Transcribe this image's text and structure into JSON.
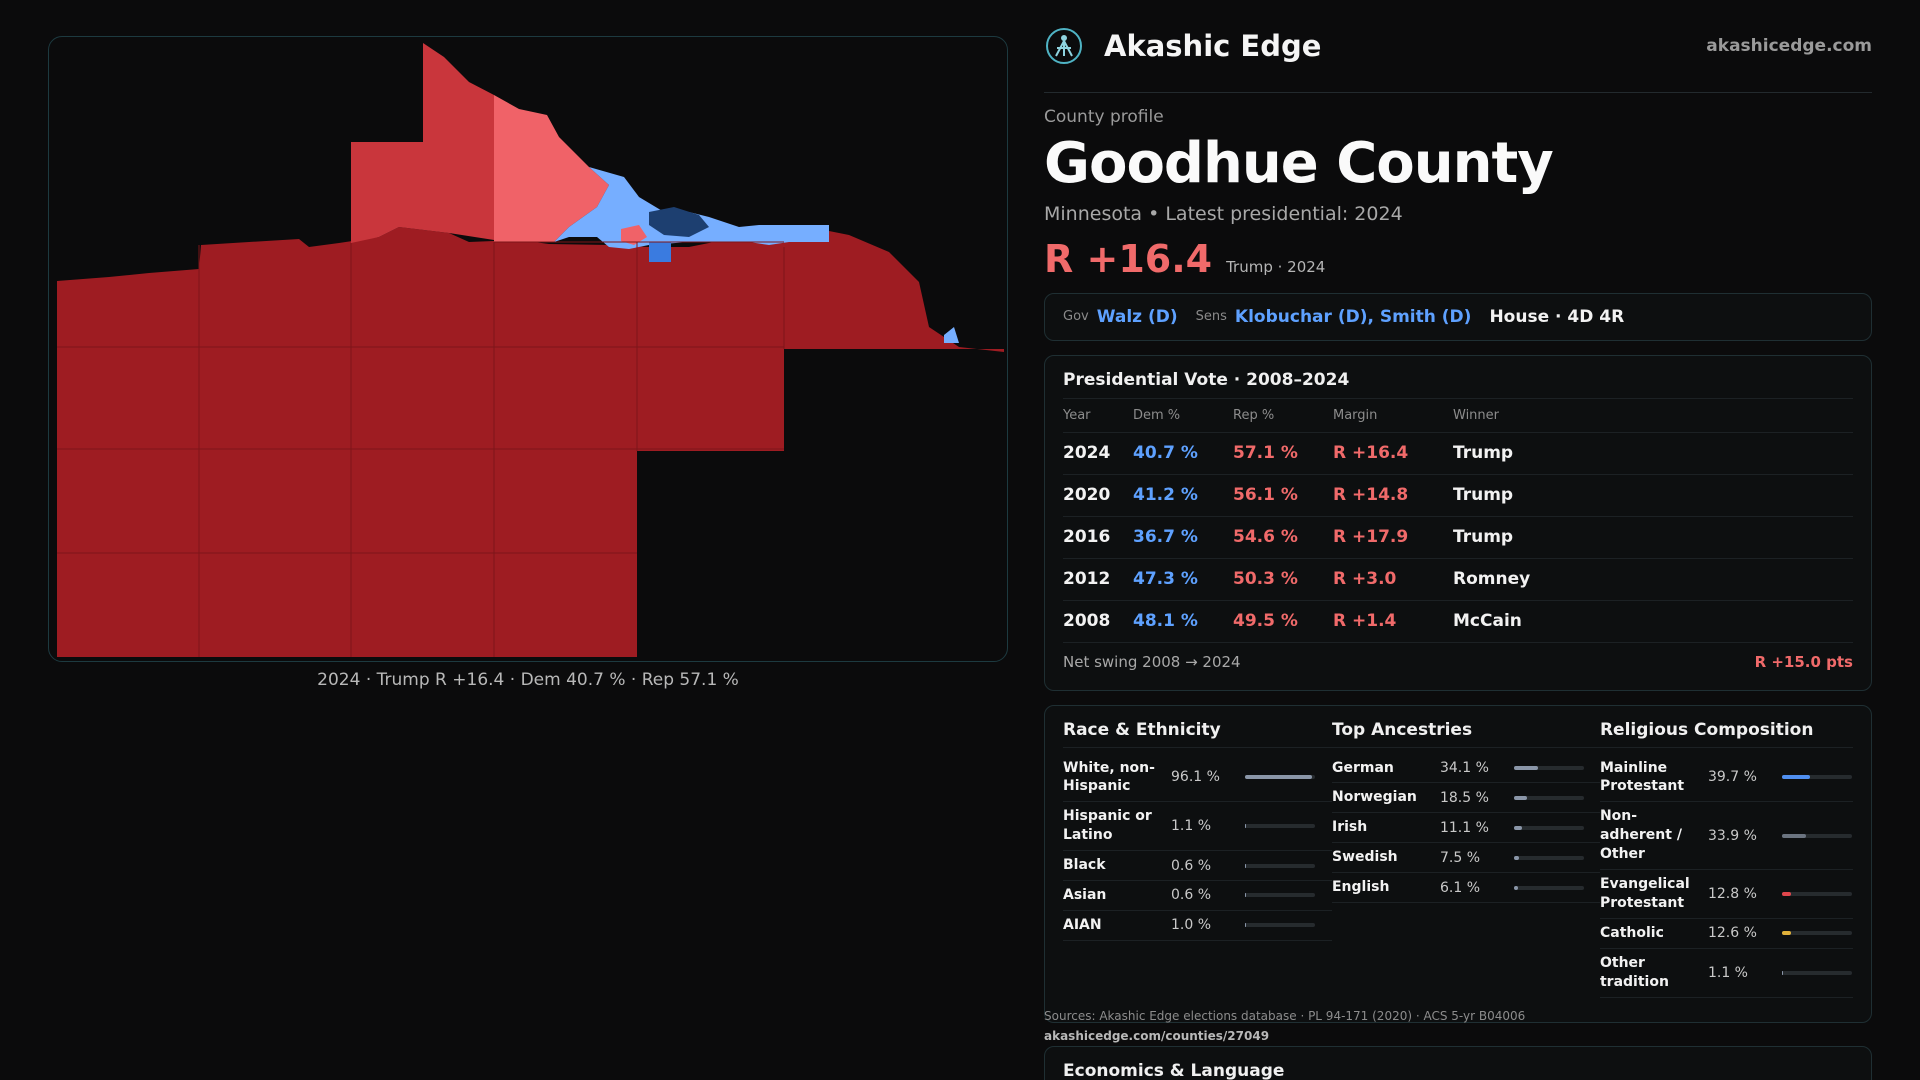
{
  "brand": {
    "name": "Akashic Edge",
    "site": "akashicedge.com"
  },
  "county": {
    "eyebrow": "County profile",
    "name": "Goodhue County",
    "subtitle": "Minnesota • Latest presidential: 2024",
    "margin": "R +16.4",
    "margin_note": "Trump · 2024"
  },
  "officials": {
    "gov_label": "Gov",
    "gov": "Walz (D)",
    "sens_label": "Sens",
    "sens": "Klobuchar (D), Smith (D)",
    "house": "House · 4D 4R"
  },
  "map": {
    "caption": "2024 · Trump R +16.4 · Dem 40.7 % · Rep 57.1 %",
    "colors": {
      "strong_r": "#9e1c22",
      "mid_r": "#c9363c",
      "light_r": "#f06268",
      "light_d": "#76aeff",
      "mid_d": "#3a7be0",
      "dark_d": "#1d3f70"
    }
  },
  "presidential": {
    "title": "Presidential Vote · 2008–2024",
    "headers": {
      "year": "Year",
      "dem": "Dem %",
      "rep": "Rep %",
      "margin": "Margin",
      "winner": "Winner"
    },
    "rows": [
      {
        "year": "2024",
        "dem": "40.7 %",
        "rep": "57.1 %",
        "margin": "R +16.4",
        "winner": "Trump"
      },
      {
        "year": "2020",
        "dem": "41.2 %",
        "rep": "56.1 %",
        "margin": "R +14.8",
        "winner": "Trump"
      },
      {
        "year": "2016",
        "dem": "36.7 %",
        "rep": "54.6 %",
        "margin": "R +17.9",
        "winner": "Trump"
      },
      {
        "year": "2012",
        "dem": "47.3 %",
        "rep": "50.3 %",
        "margin": "R +3.0",
        "winner": "Romney"
      },
      {
        "year": "2008",
        "dem": "48.1 %",
        "rep": "49.5 %",
        "margin": "R +1.4",
        "winner": "McCain"
      }
    ],
    "swing_label": "Net swing 2008 → 2024",
    "swing_value": "R +15.0 pts"
  },
  "race": {
    "title": "Race & Ethnicity",
    "items": [
      {
        "name": "White, non-Hispanic",
        "pct": "96.1 %",
        "value": 96.1,
        "color": "#8a96a8"
      },
      {
        "name": "Hispanic or Latino",
        "pct": "1.1 %",
        "value": 1.1,
        "color": "#8a96a8"
      },
      {
        "name": "Black",
        "pct": "0.6 %",
        "value": 0.6,
        "color": "#8a96a8"
      },
      {
        "name": "Asian",
        "pct": "0.6 %",
        "value": 0.6,
        "color": "#8a96a8"
      },
      {
        "name": "AIAN",
        "pct": "1.0 %",
        "value": 1.0,
        "color": "#8a96a8"
      }
    ]
  },
  "ancestry": {
    "title": "Top Ancestries",
    "items": [
      {
        "name": "German",
        "pct": "34.1 %",
        "value": 34.1,
        "color": "#8a96a8"
      },
      {
        "name": "Norwegian",
        "pct": "18.5 %",
        "value": 18.5,
        "color": "#8a96a8"
      },
      {
        "name": "Irish",
        "pct": "11.1 %",
        "value": 11.1,
        "color": "#8a96a8"
      },
      {
        "name": "Swedish",
        "pct": "7.5 %",
        "value": 7.5,
        "color": "#8a96a8"
      },
      {
        "name": "English",
        "pct": "6.1 %",
        "value": 6.1,
        "color": "#8a96a8"
      }
    ]
  },
  "religion": {
    "title": "Religious Composition",
    "items": [
      {
        "name": "Mainline Protestant",
        "pct": "39.7 %",
        "value": 39.7,
        "color": "#4f8ff0"
      },
      {
        "name": "Non-adherent / Other",
        "pct": "33.9 %",
        "value": 33.9,
        "color": "#6b7480"
      },
      {
        "name": "Evangelical Protestant",
        "pct": "12.8 %",
        "value": 12.8,
        "color": "#e0464c"
      },
      {
        "name": "Catholic",
        "pct": "12.6 %",
        "value": 12.6,
        "color": "#e0b13a"
      },
      {
        "name": "Other tradition",
        "pct": "1.1 %",
        "value": 1.1,
        "color": "#8a96a8"
      }
    ]
  },
  "sources": {
    "text": "Sources: Akashic Edge elections database · PL 94-171 (2020) · ACS 5-yr B04006",
    "url": "akashicedge.com/counties/27049"
  },
  "economics": {
    "title": "Economics & Language"
  }
}
